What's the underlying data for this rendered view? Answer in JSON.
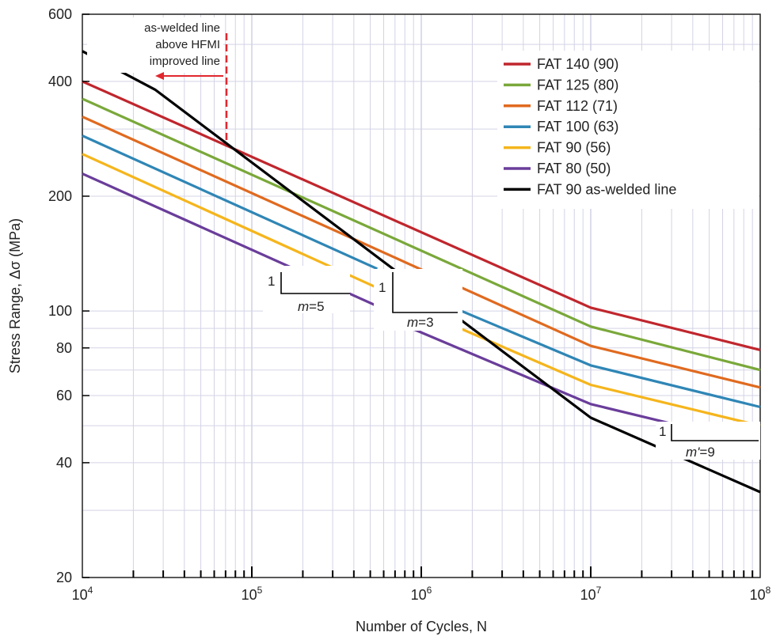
{
  "chart_data": {
    "type": "line",
    "xscale": "log",
    "yscale": "log",
    "xlim": [
      10000,
      100000000
    ],
    "ylim": [
      20,
      600
    ],
    "xlabel": "Number of Cycles, N",
    "ylabel": "Stress Range, Δσ (MPa)",
    "grid": true,
    "legend_position": "top-right",
    "x_ticks": [
      {
        "base": "10",
        "exp": "4"
      },
      {
        "base": "10",
        "exp": "5"
      },
      {
        "base": "10",
        "exp": "6"
      },
      {
        "base": "10",
        "exp": "7"
      },
      {
        "base": "10",
        "exp": "8"
      }
    ],
    "y_ticks": [
      {
        "value": 20,
        "label": "20"
      },
      {
        "value": 40,
        "label": "40"
      },
      {
        "value": 60,
        "label": "60"
      },
      {
        "value": 80,
        "label": "80"
      },
      {
        "value": 100,
        "label": "100"
      },
      {
        "value": 200,
        "label": "200"
      },
      {
        "value": 400,
        "label": "400"
      },
      {
        "value": 600,
        "label": "600"
      }
    ],
    "series": [
      {
        "name": "FAT 140 (90)",
        "color": "#c0262d",
        "segments": [
          [
            [
              10000,
              400
            ],
            [
              10000000,
              102
            ],
            [
              100000000,
              79
            ]
          ]
        ]
      },
      {
        "name": "FAT 125 (80)",
        "color": "#7aa83a",
        "segments": [
          [
            [
              10000,
              360
            ],
            [
              10000000,
              91
            ],
            [
              100000000,
              70
            ]
          ]
        ]
      },
      {
        "name": "FAT 112 (71)",
        "color": "#e06a1f",
        "segments": [
          [
            [
              10000,
              323
            ],
            [
              10000000,
              81
            ],
            [
              100000000,
              63
            ]
          ]
        ]
      },
      {
        "name": "FAT 100 (63)",
        "color": "#2f86b5",
        "segments": [
          [
            [
              10000,
              288
            ],
            [
              550000,
              129
            ]
          ],
          [
            [
              780000,
              116
            ],
            [
              10000000,
              72
            ],
            [
              100000000,
              56
            ]
          ]
        ]
      },
      {
        "name": "FAT 90 (56)",
        "color": "#f5b51c",
        "segments": [
          [
            [
              10000,
              258
            ],
            [
              550000,
              115
            ]
          ],
          [
            [
              800000,
              104
            ],
            [
              10000000,
              64
            ],
            [
              100000000,
              50
            ]
          ]
        ]
      },
      {
        "name": "FAT 80 (50)",
        "color": "#6a3d9a",
        "segments": [
          [
            [
              10000,
              229
            ],
            [
              550000,
              103
            ]
          ],
          [
            [
              780000,
              92
            ],
            [
              10000000,
              57
            ],
            [
              100000000,
              44.5
            ]
          ]
        ]
      },
      {
        "name": "FAT 90 as-welded line",
        "color": "#000000",
        "segments": [
          [
            [
              10000,
              480
            ],
            [
              27000,
              380
            ],
            [
              10000000,
              52.5
            ],
            [
              100000000,
              33.5
            ]
          ]
        ]
      }
    ],
    "annotations": {
      "hfmi_note": {
        "lines": [
          "as-welded line",
          "above HFMI",
          "improved line"
        ],
        "arrow_color": "#e0282e",
        "divider_x": 72000
      },
      "slope_m5": {
        "one": "1",
        "m": "m",
        "eq": "=5"
      },
      "slope_m3": {
        "one": "1",
        "m": "m",
        "eq": "=3"
      },
      "slope_m9": {
        "one": "1",
        "m": "m'",
        "eq": "=9"
      }
    }
  }
}
